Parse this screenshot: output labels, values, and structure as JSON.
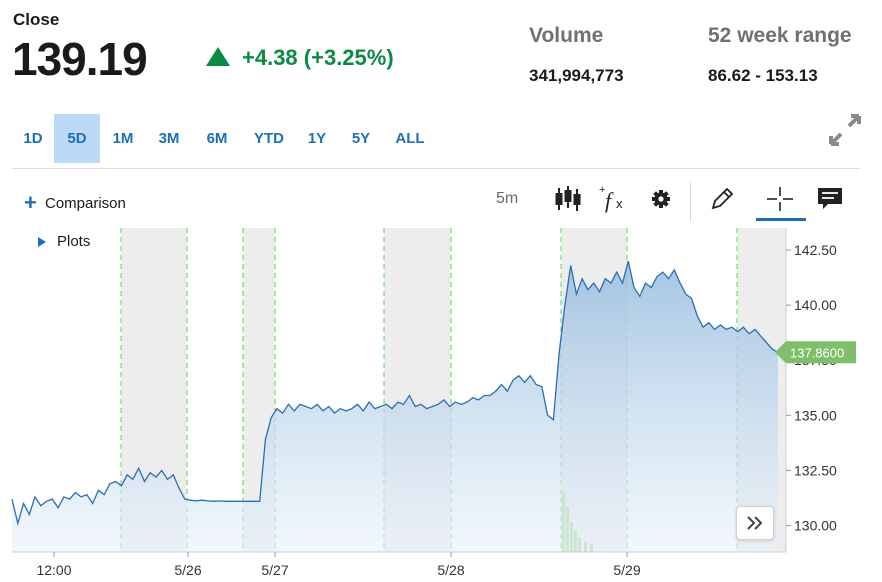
{
  "quote": {
    "close_label": "Close",
    "close_value": "139.19",
    "change_text": "+4.38 (+3.25%)",
    "change_color": "#0b8a43",
    "volume_label": "Volume",
    "volume_value": "341,994,773",
    "range_label": "52 week range",
    "range_value": "86.62 - 153.13"
  },
  "range_tabs": [
    {
      "label": "1D",
      "active": false
    },
    {
      "label": "5D",
      "active": true
    },
    {
      "label": "1M",
      "active": false
    },
    {
      "label": "3M",
      "active": false
    },
    {
      "label": "6M",
      "active": false
    },
    {
      "label": "YTD",
      "active": false
    },
    {
      "label": "1Y",
      "active": false
    },
    {
      "label": "5Y",
      "active": false
    },
    {
      "label": "ALL",
      "active": false
    }
  ],
  "toolbar": {
    "comparison_label": "Comparison",
    "interval_label": "5m",
    "icons": [
      "candlestick-icon",
      "function-icon",
      "gear-icon",
      "pencil-icon",
      "crosshair-icon",
      "comment-icon"
    ]
  },
  "plots_label": "Plots",
  "accent_color": "#1d6fb8",
  "chart_data": {
    "type": "area",
    "price_ticks": [
      "142.50",
      "140.00",
      "137.50",
      "135.00",
      "132.50",
      "130.00"
    ],
    "ylim": [
      128.8,
      143.5
    ],
    "date_ticks": [
      "12:00",
      "5/26",
      "5/27",
      "5/28",
      "5/29"
    ],
    "last_price": "137.8600",
    "last_price_color": "#7fbf6b",
    "series": [
      {
        "values": [
          131.2,
          130.1,
          131.0,
          130.5,
          131.3,
          130.9,
          131.1,
          131.2,
          130.8,
          131.3,
          131.2,
          131.5,
          131.3,
          131.4,
          131.0,
          131.6,
          131.4,
          131.9,
          132.0,
          131.8,
          132.3,
          132.1,
          132.6,
          132.0,
          132.4,
          132.2,
          132.5,
          132.1,
          132.3,
          131.7,
          131.2,
          131.15,
          131.12,
          131.15,
          131.12,
          131.1,
          131.12,
          131.1,
          131.1,
          131.1,
          131.1,
          131.1,
          131.1,
          131.1,
          133.9,
          134.9,
          135.3,
          135.1,
          135.5,
          135.2,
          135.5,
          135.4,
          135.3,
          135.5,
          135.2,
          135.4,
          135.1,
          135.3,
          135.2,
          135.3,
          135.5,
          135.2,
          135.6,
          135.3,
          135.4,
          135.5,
          135.3,
          135.6,
          135.5,
          135.9,
          135.4,
          135.5,
          135.3,
          135.4,
          135.5,
          135.7,
          135.4,
          135.6,
          135.5,
          135.6,
          135.8,
          135.7,
          135.9,
          135.9,
          136.1,
          136.4,
          136.1,
          136.6,
          136.8,
          136.5,
          136.8,
          136.4,
          136.3,
          135.0,
          134.8,
          137.8,
          140.0,
          141.8,
          140.5,
          141.2,
          140.7,
          141.0,
          140.6,
          141.2,
          141.0,
          141.5,
          141.0,
          142.0,
          140.8,
          140.4,
          141.0,
          140.8,
          141.3,
          141.5,
          141.2,
          141.6,
          141.0,
          140.5,
          140.3,
          139.5,
          139.0,
          139.2,
          138.9,
          139.1,
          138.9,
          139.0,
          138.8,
          139.0,
          138.7,
          138.9,
          138.6,
          138.3,
          138.0,
          137.86
        ]
      }
    ]
  }
}
